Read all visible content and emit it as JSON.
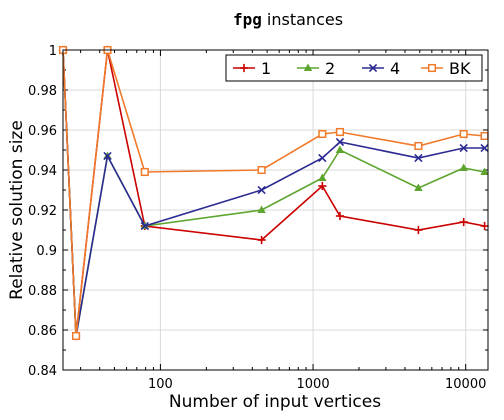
{
  "chart_data": {
    "type": "line",
    "title_code": "fpg",
    "title_rest": " instances",
    "xlabel": "Number of input vertices",
    "ylabel": "Relative solution size",
    "xscale": "log",
    "xlim": [
      23,
      14000
    ],
    "ylim": [
      0.84,
      1.0
    ],
    "xticks": [
      100,
      1000,
      10000
    ],
    "xtick_labels": [
      "100",
      "1000",
      "10000"
    ],
    "yticks": [
      0.84,
      0.86,
      0.88,
      0.9,
      0.92,
      0.94,
      0.96,
      0.98,
      1.0
    ],
    "ytick_labels": [
      "0.84",
      "0.86",
      "0.88",
      "0.9",
      "0.92",
      "0.94",
      "0.96",
      "0.98",
      "1"
    ],
    "grid": true,
    "legend_position": "top-right",
    "x": [
      23,
      28,
      45,
      79,
      460,
      1150,
      1500,
      4900,
      9700,
      13300
    ],
    "series": [
      {
        "name": "1",
        "color": "#cc0000",
        "marker": "plus",
        "values": [
          1.0,
          0.857,
          1.0,
          0.912,
          0.905,
          0.932,
          0.917,
          0.91,
          0.914,
          0.912
        ]
      },
      {
        "name": "2",
        "color": "#5da52f",
        "marker": "triangle",
        "values": [
          1.0,
          0.857,
          0.947,
          0.912,
          0.92,
          0.936,
          0.95,
          0.931,
          0.941,
          0.939
        ]
      },
      {
        "name": "4",
        "color": "#2b2b92",
        "marker": "cross",
        "values": [
          1.0,
          0.857,
          0.947,
          0.912,
          0.93,
          0.946,
          0.954,
          0.946,
          0.951,
          0.951
        ]
      },
      {
        "name": "BK",
        "color": "#f07a2a",
        "marker": "square",
        "values": [
          1.0,
          0.857,
          1.0,
          0.939,
          0.94,
          0.958,
          0.959,
          0.952,
          0.958,
          0.957
        ]
      }
    ]
  }
}
